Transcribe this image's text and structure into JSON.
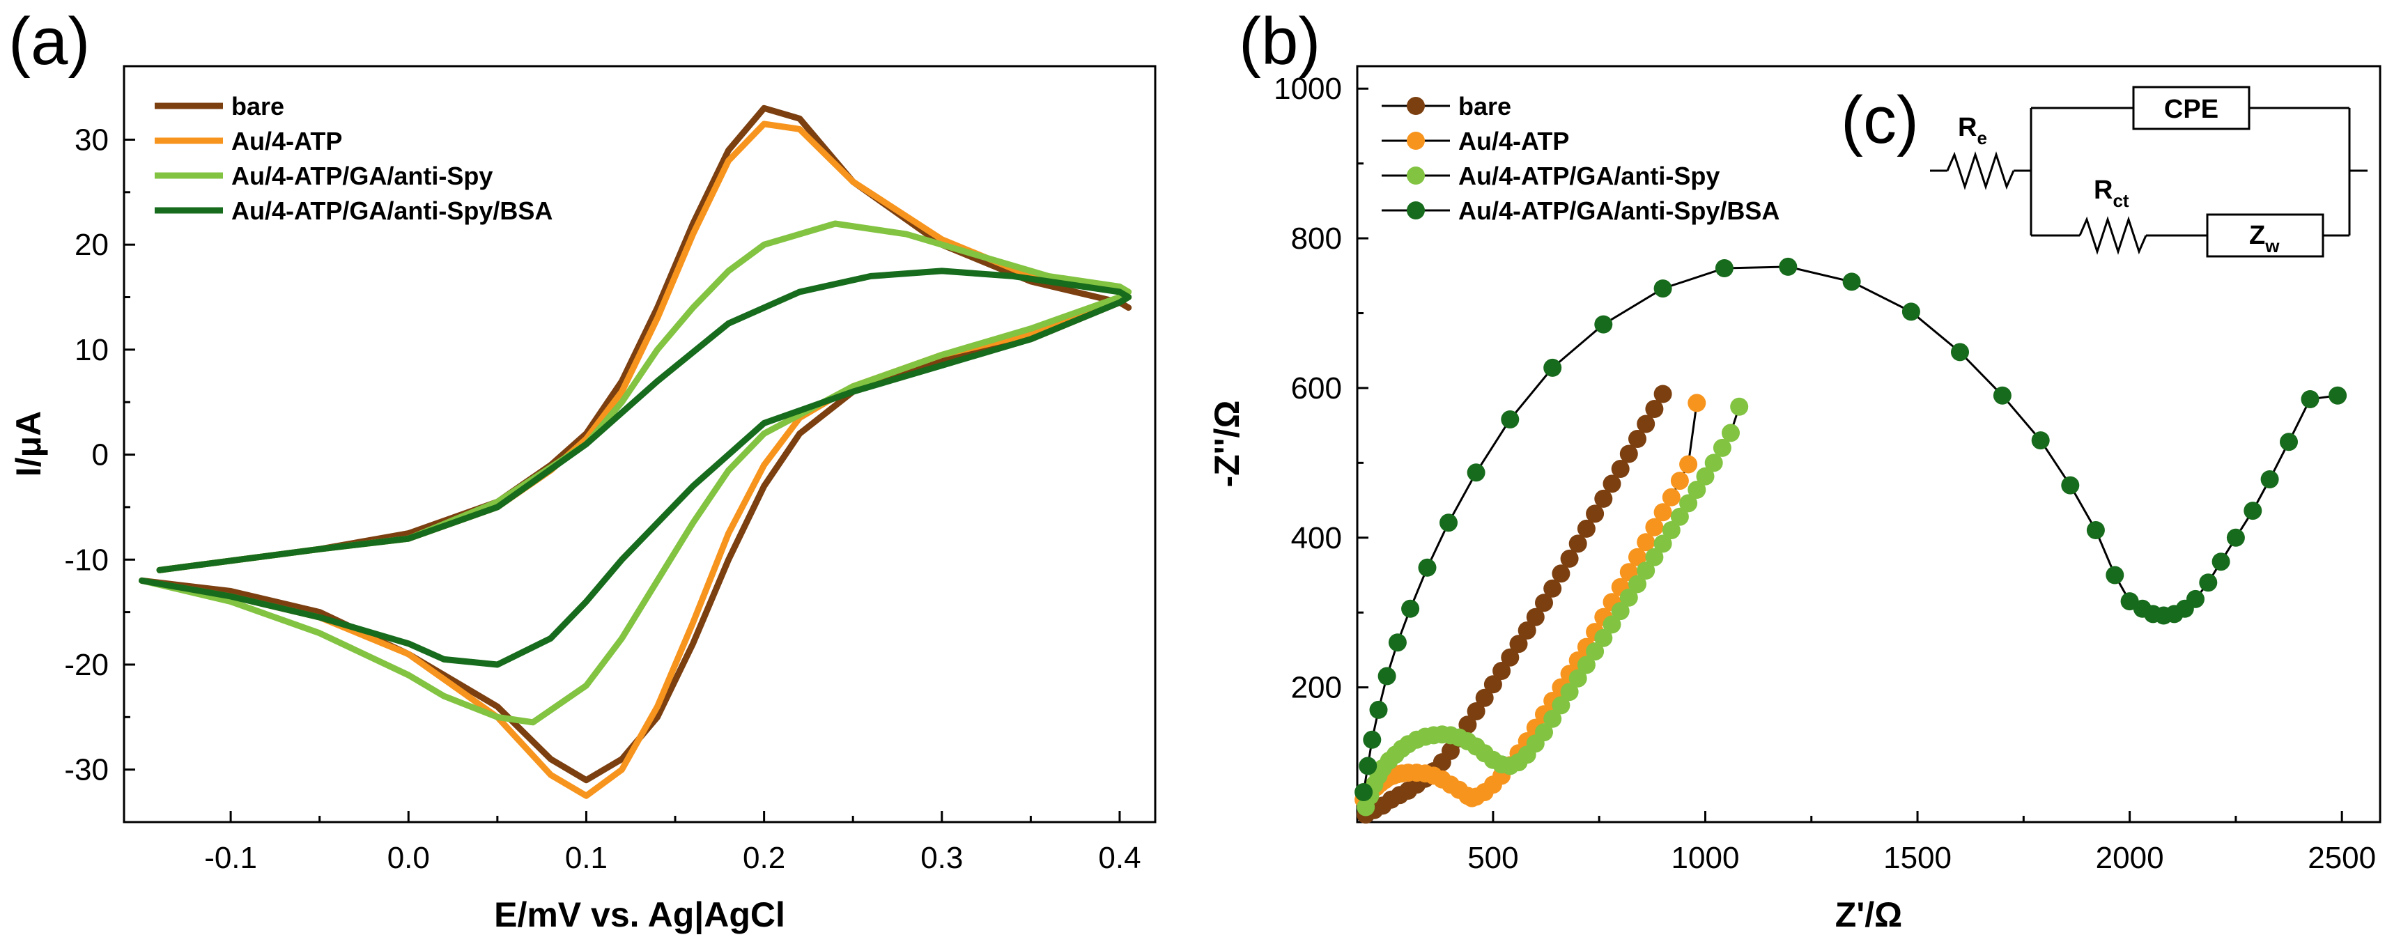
{
  "chart_data": [
    {
      "panel_label": "(a)",
      "type": "line",
      "title": "",
      "xlabel": "E/mV vs. Ag|AgCl",
      "ylabel": "I/μA",
      "xlim": [
        -0.16,
        0.42
      ],
      "ylim": [
        -35,
        37
      ],
      "xticks": [
        -0.1,
        0.0,
        0.1,
        0.2,
        0.3,
        0.4
      ],
      "xtick_labels": [
        "-0.1",
        "0.0",
        "0.1",
        "0.2",
        "0.3",
        "0.4"
      ],
      "yticks": [
        -30,
        -20,
        -10,
        0,
        10,
        20,
        30
      ],
      "ytick_labels": [
        "-30",
        "-20",
        "-10",
        "0",
        "10",
        "20",
        "30"
      ],
      "legend_position": "top-left",
      "series": [
        {
          "name": "bare",
          "color": "#7b3f10",
          "x": [
            -0.14,
            -0.05,
            0.0,
            0.05,
            0.08,
            0.1,
            0.12,
            0.14,
            0.16,
            0.18,
            0.2,
            0.22,
            0.25,
            0.3,
            0.35,
            0.4,
            0.405,
            0.4,
            0.35,
            0.3,
            0.25,
            0.22,
            0.2,
            0.18,
            0.16,
            0.14,
            0.12,
            0.1,
            0.08,
            0.05,
            0.0,
            -0.05,
            -0.1,
            -0.15
          ],
          "y": [
            -11,
            -9,
            -7.5,
            -4.5,
            -1,
            2,
            7,
            14,
            22,
            29,
            33,
            32,
            26,
            20,
            16.5,
            14.5,
            14,
            14.5,
            11,
            9,
            6,
            2,
            -3,
            -10,
            -18,
            -25,
            -29,
            -31,
            -29,
            -24,
            -19,
            -15,
            -13,
            -12
          ]
        },
        {
          "name": "Au/4-ATP",
          "color": "#f7941d",
          "x": [
            -0.14,
            -0.05,
            0.0,
            0.05,
            0.08,
            0.1,
            0.12,
            0.14,
            0.16,
            0.18,
            0.2,
            0.22,
            0.25,
            0.3,
            0.35,
            0.4,
            0.405,
            0.4,
            0.35,
            0.3,
            0.25,
            0.22,
            0.2,
            0.18,
            0.16,
            0.14,
            0.12,
            0.1,
            0.08,
            0.05,
            0.0,
            -0.05,
            -0.1,
            -0.15
          ],
          "y": [
            -11,
            -9,
            -8,
            -5,
            -1.5,
            1.5,
            6,
            13,
            21,
            28,
            31.5,
            31,
            26,
            20.5,
            17,
            15.5,
            15,
            15,
            11.5,
            9.5,
            6.5,
            3.5,
            -1,
            -7.5,
            -16,
            -24,
            -30,
            -32.5,
            -30.5,
            -25,
            -19,
            -15.5,
            -13.5,
            -12
          ]
        },
        {
          "name": "Au/4-ATP/GA/anti-Spy",
          "color": "#82c341",
          "x": [
            -0.14,
            -0.05,
            0.0,
            0.05,
            0.1,
            0.12,
            0.14,
            0.16,
            0.18,
            0.2,
            0.24,
            0.28,
            0.32,
            0.36,
            0.4,
            0.405,
            0.4,
            0.35,
            0.3,
            0.25,
            0.2,
            0.18,
            0.16,
            0.14,
            0.12,
            0.1,
            0.07,
            0.05,
            0.02,
            0.0,
            -0.05,
            -0.1,
            -0.15
          ],
          "y": [
            -11,
            -9,
            -8,
            -4.5,
            1,
            5,
            10,
            14,
            17.5,
            20,
            22,
            21,
            19,
            17,
            16,
            15.5,
            15,
            12,
            9.5,
            6.5,
            2,
            -1.5,
            -6.5,
            -12,
            -17.5,
            -22,
            -25.5,
            -25,
            -23,
            -21,
            -17,
            -14,
            -12
          ]
        },
        {
          "name": "Au/4-ATP/GA/anti-Spy/BSA",
          "color": "#176b1c",
          "x": [
            -0.14,
            -0.05,
            0.0,
            0.05,
            0.1,
            0.14,
            0.18,
            0.22,
            0.26,
            0.3,
            0.34,
            0.38,
            0.4,
            0.405,
            0.4,
            0.35,
            0.3,
            0.25,
            0.2,
            0.16,
            0.12,
            0.1,
            0.08,
            0.05,
            0.02,
            0.0,
            -0.05,
            -0.1,
            -0.15
          ],
          "y": [
            -11,
            -9,
            -8,
            -5,
            1,
            7,
            12.5,
            15.5,
            17,
            17.5,
            17,
            16,
            15.5,
            15,
            14.5,
            11,
            8.5,
            6,
            3,
            -3,
            -10,
            -14,
            -17.5,
            -20,
            -19.5,
            -18,
            -15.5,
            -13.5,
            -12
          ]
        }
      ]
    },
    {
      "panel_label": "(b)",
      "type": "scatter",
      "title": "",
      "xlabel": "Z'/Ω",
      "ylabel": "-Z''/Ω",
      "xlim": [
        180,
        2590
      ],
      "ylim": [
        20,
        1030
      ],
      "xticks": [
        500,
        1000,
        1500,
        2000,
        2500
      ],
      "xtick_labels": [
        "500",
        "1000",
        "1500",
        "2000",
        "2500"
      ],
      "yticks": [
        200,
        400,
        600,
        800,
        1000
      ],
      "ytick_labels": [
        "200",
        "400",
        "600",
        "800",
        "1000"
      ],
      "legend_position": "top-left",
      "series": [
        {
          "name": "bare",
          "color": "#7b3f10",
          "x": [
            200,
            220,
            240,
            260,
            280,
            300,
            320,
            340,
            360,
            380,
            400,
            420,
            440,
            460,
            480,
            500,
            520,
            540,
            560,
            580,
            600,
            620,
            640,
            660,
            680,
            700,
            720,
            740,
            760,
            780,
            800,
            820,
            840,
            860,
            880,
            900
          ],
          "y": [
            30,
            36,
            42,
            50,
            56,
            62,
            70,
            78,
            88,
            100,
            115,
            132,
            150,
            168,
            186,
            204,
            222,
            240,
            258,
            276,
            294,
            313,
            332,
            352,
            372,
            392,
            412,
            432,
            452,
            472,
            492,
            512,
            532,
            552,
            572,
            592
          ]
        },
        {
          "name": "Au/4-ATP",
          "color": "#f7941d",
          "x": [
            195,
            205,
            215,
            225,
            235,
            245,
            255,
            265,
            275,
            285,
            300,
            320,
            340,
            360,
            380,
            400,
            420,
            440,
            450,
            460,
            480,
            500,
            520,
            540,
            560,
            580,
            600,
            620,
            640,
            660,
            680,
            700,
            720,
            740,
            760,
            780,
            800,
            820,
            840,
            860,
            880,
            900,
            920,
            940,
            960,
            980
          ],
          "y": [
            50,
            56,
            62,
            67,
            72,
            76,
            80,
            82,
            84,
            85,
            86,
            86,
            85,
            82,
            77,
            70,
            63,
            55,
            52,
            54,
            60,
            70,
            82,
            96,
            112,
            128,
            146,
            164,
            182,
            200,
            218,
            236,
            254,
            274,
            294,
            314,
            334,
            354,
            374,
            394,
            414,
            434,
            454,
            476,
            498,
            580
          ]
        },
        {
          "name": "Au/4-ATP/GA/anti-Spy",
          "color": "#82c341",
          "x": [
            200,
            210,
            220,
            230,
            240,
            255,
            270,
            285,
            300,
            320,
            340,
            360,
            380,
            400,
            420,
            440,
            460,
            480,
            500,
            520,
            540,
            560,
            580,
            600,
            620,
            640,
            660,
            680,
            700,
            720,
            740,
            760,
            780,
            800,
            820,
            840,
            860,
            880,
            900,
            920,
            940,
            960,
            980,
            1000,
            1020,
            1040,
            1060,
            1080
          ],
          "y": [
            40,
            55,
            70,
            82,
            92,
            102,
            110,
            118,
            124,
            130,
            134,
            136,
            137,
            136,
            133,
            128,
            121,
            112,
            103,
            97,
            95,
            100,
            110,
            125,
            140,
            158,
            176,
            194,
            212,
            230,
            248,
            266,
            284,
            302,
            320,
            338,
            356,
            374,
            392,
            410,
            428,
            446,
            464,
            482,
            500,
            520,
            540,
            575
          ]
        },
        {
          "name": "Au/4-ATP/GA/anti-Spy/BSA",
          "color": "#176b1c",
          "x": [
            195,
            205,
            215,
            230,
            250,
            275,
            305,
            345,
            395,
            460,
            540,
            640,
            760,
            900,
            1045,
            1195,
            1345,
            1485,
            1600,
            1700,
            1790,
            1860,
            1920,
            1965,
            2000,
            2030,
            2055,
            2080,
            2105,
            2130,
            2155,
            2185,
            2215,
            2250,
            2290,
            2330,
            2375,
            2425,
            2490
          ],
          "y": [
            60,
            95,
            130,
            170,
            215,
            260,
            305,
            360,
            420,
            487,
            558,
            627,
            685,
            733,
            760,
            762,
            742,
            702,
            648,
            590,
            530,
            470,
            410,
            350,
            315,
            305,
            298,
            296,
            298,
            305,
            318,
            340,
            368,
            400,
            436,
            478,
            528,
            585,
            590
          ]
        }
      ]
    }
  ],
  "circuit": {
    "panel_label": "(c)",
    "elements": [
      {
        "name": "R",
        "subscript": "e"
      },
      {
        "name": "CPE",
        "subscript": ""
      },
      {
        "name": "R",
        "subscript": "ct"
      },
      {
        "name": "Z",
        "subscript": "w"
      }
    ]
  }
}
